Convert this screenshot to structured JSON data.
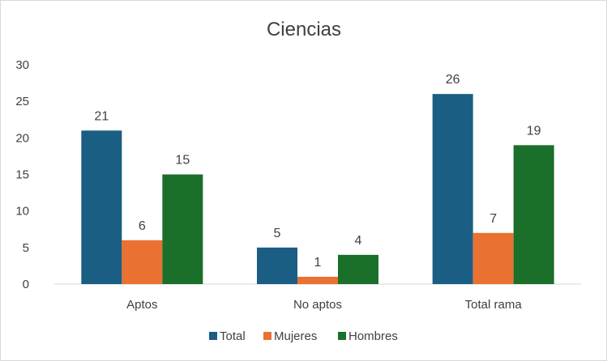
{
  "chart_data": {
    "type": "bar",
    "title": "Ciencias",
    "xlabel": "",
    "ylabel": "",
    "categories": [
      "Aptos",
      "No aptos",
      "Total rama"
    ],
    "series": [
      {
        "name": "Total",
        "values": [
          21,
          5,
          26
        ],
        "color": "#1a5e84"
      },
      {
        "name": "Mujeres",
        "values": [
          6,
          1,
          7
        ],
        "color": "#e97132"
      },
      {
        "name": "Hombres",
        "values": [
          15,
          4,
          19
        ],
        "color": "#1a6f2a"
      }
    ],
    "ylim": [
      0,
      30
    ],
    "yticks": [
      0,
      5,
      10,
      15,
      20,
      25,
      30
    ],
    "grid": false,
    "data_labels": true,
    "legend_position": "bottom"
  }
}
